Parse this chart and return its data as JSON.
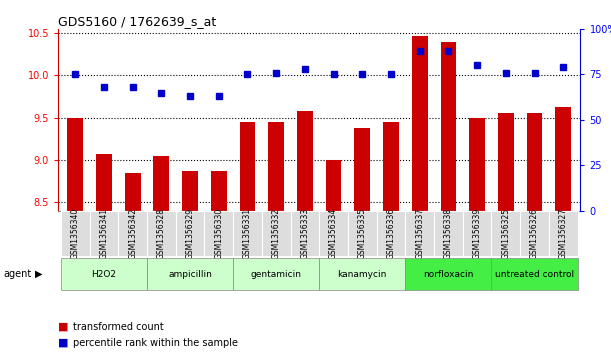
{
  "title": "GDS5160 / 1762639_s_at",
  "samples": [
    "GSM1356340",
    "GSM1356341",
    "GSM1356342",
    "GSM1356328",
    "GSM1356329",
    "GSM1356330",
    "GSM1356331",
    "GSM1356332",
    "GSM1356333",
    "GSM1356334",
    "GSM1356335",
    "GSM1356336",
    "GSM1356337",
    "GSM1356338",
    "GSM1356339",
    "GSM1356325",
    "GSM1356326",
    "GSM1356327"
  ],
  "transformed_count": [
    9.5,
    9.07,
    8.85,
    9.05,
    8.87,
    8.87,
    9.45,
    9.45,
    9.58,
    9.0,
    9.38,
    9.45,
    10.47,
    10.4,
    9.5,
    9.55,
    9.55,
    9.63
  ],
  "percentile_rank": [
    75,
    68,
    68,
    65,
    63,
    63,
    75,
    76,
    78,
    75,
    75,
    75,
    88,
    88,
    80,
    76,
    76,
    79
  ],
  "groups": [
    {
      "label": "H2O2",
      "start": 0,
      "end": 3,
      "color": "#ccffcc"
    },
    {
      "label": "ampicillin",
      "start": 3,
      "end": 6,
      "color": "#ccffcc"
    },
    {
      "label": "gentamicin",
      "start": 6,
      "end": 9,
      "color": "#ccffcc"
    },
    {
      "label": "kanamycin",
      "start": 9,
      "end": 12,
      "color": "#ccffcc"
    },
    {
      "label": "norfloxacin",
      "start": 12,
      "end": 15,
      "color": "#44ee44"
    },
    {
      "label": "untreated control",
      "start": 15,
      "end": 18,
      "color": "#44ee44"
    }
  ],
  "ylim_left": [
    8.4,
    10.55
  ],
  "ylim_right": [
    0,
    100
  ],
  "yticks_left": [
    8.5,
    9.0,
    9.5,
    10.0,
    10.5
  ],
  "yticks_right": [
    0,
    25,
    50,
    75,
    100
  ],
  "bar_color": "#cc0000",
  "dot_color": "#0000cc",
  "background_color": "#ffffff",
  "gridline_color": "#000000",
  "bar_width": 0.55,
  "left_spine_color": "#cc0000",
  "right_spine_color": "#0000cc"
}
